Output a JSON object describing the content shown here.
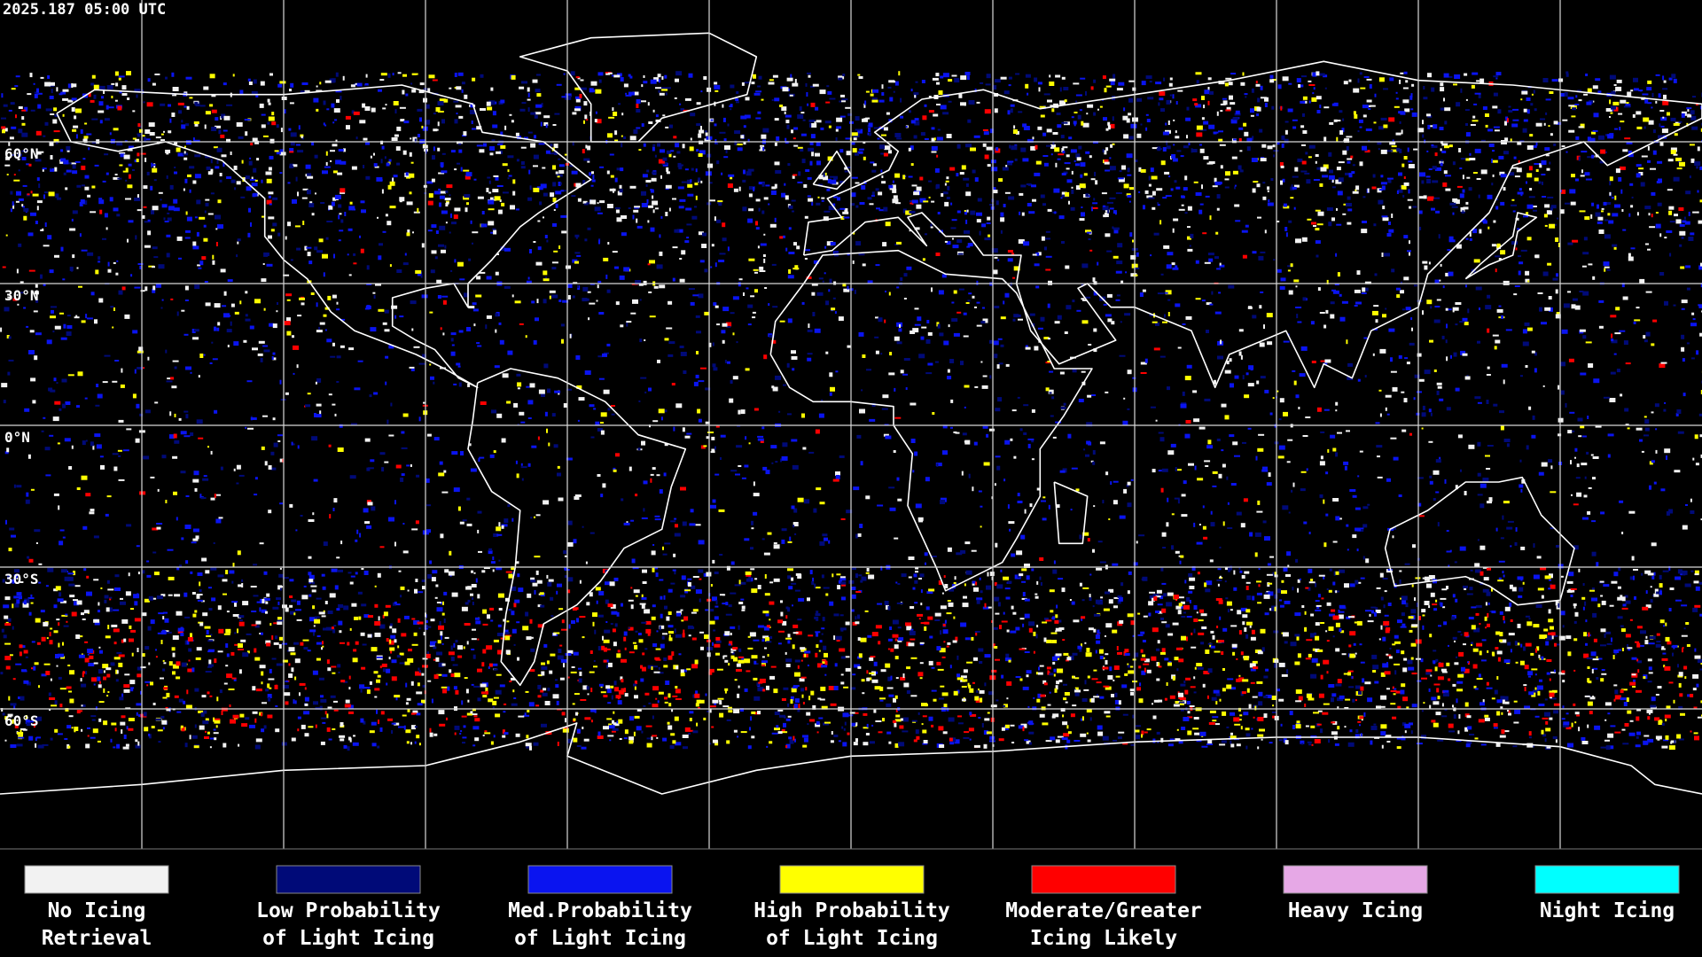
{
  "header": {
    "timestamp": "2025.187 05:00 UTC"
  },
  "map": {
    "latitude_labels": [
      "60°N",
      "30°N",
      "0°N",
      "30°S",
      "60°S"
    ]
  },
  "legend": {
    "items": [
      {
        "lines": [
          "No Icing",
          "Retrieval"
        ],
        "color": "#f2f2f2"
      },
      {
        "lines": [
          "Low Probability",
          "of Light Icing"
        ],
        "color": "#000a78"
      },
      {
        "lines": [
          "Med.Probability",
          "of Light Icing"
        ],
        "color": "#0a14f0"
      },
      {
        "lines": [
          "High Probability",
          "of Light Icing"
        ],
        "color": "#ffff00"
      },
      {
        "lines": [
          "Moderate/Greater",
          "Icing Likely"
        ],
        "color": "#ff0000"
      },
      {
        "lines": [
          "Heavy Icing"
        ],
        "color": "#e6a8e6"
      },
      {
        "lines": [
          "Night Icing"
        ],
        "color": "#00ffff"
      }
    ]
  }
}
